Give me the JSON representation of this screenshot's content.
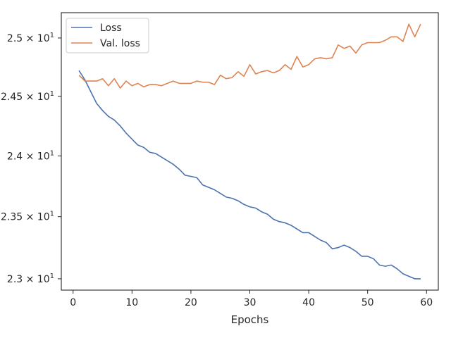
{
  "chart_data": {
    "type": "line",
    "title": "",
    "xlabel": "Epochs",
    "ylabel": "",
    "xlim": [
      -2,
      62
    ],
    "ylim": [
      22.91,
      25.22
    ],
    "x_ticks": [
      0,
      10,
      20,
      30,
      40,
      50,
      60
    ],
    "x_tick_labels": [
      "0",
      "10",
      "20",
      "30",
      "40",
      "50",
      "60"
    ],
    "y_ticks": [
      23.0,
      23.5,
      24.0,
      24.5,
      25.0
    ],
    "y_tick_labels": [
      {
        "mantissa": "2.3",
        "exp": "1"
      },
      {
        "mantissa": "2.35",
        "exp": "1"
      },
      {
        "mantissa": "2.4",
        "exp": "1"
      },
      {
        "mantissa": "2.45",
        "exp": "1"
      },
      {
        "mantissa": "2.5",
        "exp": "1"
      }
    ],
    "y_scale": "log",
    "grid": false,
    "legend": {
      "placement": "top-left"
    },
    "series": [
      {
        "name": "Loss",
        "color": "#4c72b0",
        "x": [
          1,
          2,
          3,
          4,
          5,
          6,
          7,
          8,
          9,
          10,
          11,
          12,
          13,
          14,
          15,
          16,
          17,
          18,
          19,
          20,
          21,
          22,
          23,
          24,
          25,
          26,
          27,
          28,
          29,
          30,
          31,
          32,
          33,
          34,
          35,
          36,
          37,
          38,
          39,
          40,
          41,
          42,
          43,
          44,
          45,
          46,
          47,
          48,
          49,
          50,
          51,
          52,
          53,
          54,
          55,
          56,
          57,
          58,
          59
        ],
        "values": [
          24.72,
          24.64,
          24.54,
          24.44,
          24.38,
          24.33,
          24.3,
          24.25,
          24.19,
          24.14,
          24.09,
          24.07,
          24.03,
          24.02,
          23.99,
          23.96,
          23.93,
          23.89,
          23.84,
          23.83,
          23.82,
          23.76,
          23.74,
          23.72,
          23.69,
          23.66,
          23.65,
          23.63,
          23.6,
          23.58,
          23.57,
          23.54,
          23.52,
          23.48,
          23.46,
          23.45,
          23.43,
          23.4,
          23.37,
          23.37,
          23.34,
          23.31,
          23.29,
          23.24,
          23.25,
          23.27,
          23.25,
          23.22,
          23.18,
          23.18,
          23.16,
          23.11,
          23.1,
          23.11,
          23.08,
          23.04,
          23.02,
          23.0,
          23.0
        ]
      },
      {
        "name": "Val. loss",
        "color": "#dd8452",
        "x": [
          1,
          2,
          3,
          4,
          5,
          6,
          7,
          8,
          9,
          10,
          11,
          12,
          13,
          14,
          15,
          16,
          17,
          18,
          19,
          20,
          21,
          22,
          23,
          24,
          25,
          26,
          27,
          28,
          29,
          30,
          31,
          32,
          33,
          34,
          35,
          36,
          37,
          38,
          39,
          40,
          41,
          42,
          43,
          44,
          45,
          46,
          47,
          48,
          49,
          50,
          51,
          52,
          53,
          54,
          55,
          56,
          57,
          58,
          59
        ],
        "values": [
          24.68,
          24.63,
          24.63,
          24.63,
          24.65,
          24.59,
          24.65,
          24.57,
          24.63,
          24.59,
          24.61,
          24.58,
          24.6,
          24.6,
          24.59,
          24.61,
          24.63,
          24.61,
          24.61,
          24.61,
          24.63,
          24.62,
          24.62,
          24.6,
          24.68,
          24.65,
          24.66,
          24.71,
          24.67,
          24.77,
          24.69,
          24.71,
          24.72,
          24.7,
          24.72,
          24.77,
          24.73,
          24.84,
          24.75,
          24.77,
          24.82,
          24.83,
          24.82,
          24.83,
          24.94,
          24.91,
          24.93,
          24.87,
          24.94,
          24.96,
          24.96,
          24.96,
          24.98,
          25.01,
          25.01,
          24.97,
          25.12,
          25.01,
          25.12
        ]
      }
    ]
  }
}
